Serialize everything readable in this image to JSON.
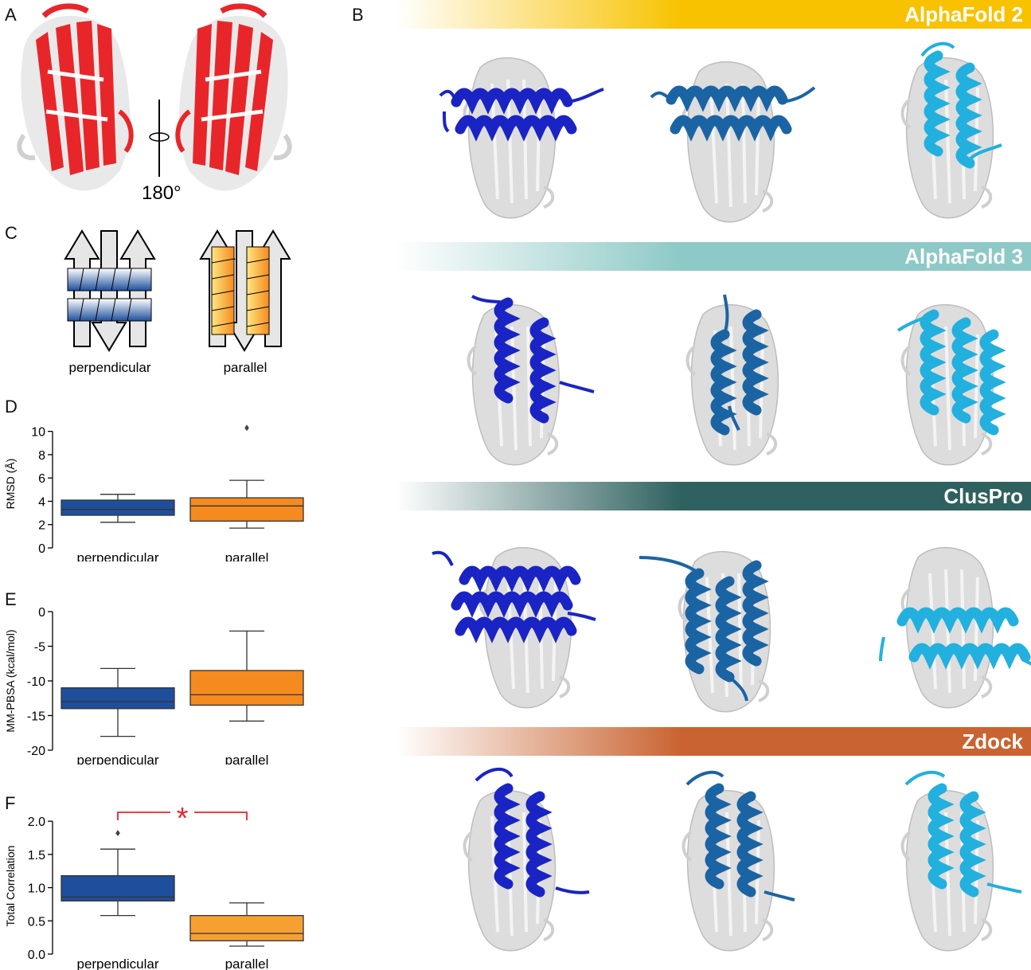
{
  "panels": {
    "a": "A",
    "b": "B",
    "c": "C",
    "d": "D",
    "e": "E",
    "f": "F"
  },
  "panel_a": {
    "rotation_label": "180°"
  },
  "panel_c": {
    "left_label": "perpendicular",
    "right_label": "parallel"
  },
  "methods": [
    {
      "name": "AlphaFold 2",
      "color": "#F8C200"
    },
    {
      "name": "AlphaFold 3",
      "color": "#8DC9C6"
    },
    {
      "name": "ClusPro",
      "color": "#2E615F"
    },
    {
      "name": "Zdock",
      "color": "#C96331"
    }
  ],
  "structure_colors": {
    "red_protein": "#E8262A",
    "helix_1": "#1A24C4",
    "helix_2": "#1B64A4",
    "helix_3": "#22B0DE",
    "protein_gray": "#DADADA"
  },
  "chart_data": [
    {
      "type": "box",
      "panel": "D",
      "ylabel": "RMSD (Å)",
      "yticks": [
        0,
        2,
        4,
        6,
        8,
        10
      ],
      "ylim": [
        0,
        11
      ],
      "categories": [
        "perpendicular",
        "parallel"
      ],
      "colors": [
        "#1E4F9C",
        "#F58A1F"
      ],
      "boxes": [
        {
          "whislo": 2.2,
          "q1": 2.8,
          "med": 3.3,
          "q3": 4.1,
          "whishi": 4.6,
          "fliers": []
        },
        {
          "whislo": 1.7,
          "q1": 2.3,
          "med": 3.6,
          "q3": 4.3,
          "whishi": 5.8,
          "fliers": [
            10.3
          ]
        }
      ]
    },
    {
      "type": "box",
      "panel": "E",
      "ylabel": "MM-PBSA (kcal/mol)",
      "yticks": [
        -20,
        -15,
        -10,
        -5,
        0
      ],
      "ylim": [
        -20,
        0
      ],
      "categories": [
        "perpendicular",
        "parallel"
      ],
      "colors": [
        "#1E4F9C",
        "#F58A1F"
      ],
      "boxes": [
        {
          "whislo": -18.0,
          "q1": -14.0,
          "med": -13.0,
          "q3": -11.0,
          "whishi": -8.2,
          "fliers": []
        },
        {
          "whislo": -15.8,
          "q1": -13.5,
          "med": -12.0,
          "q3": -8.5,
          "whishi": -2.8,
          "fliers": []
        }
      ]
    },
    {
      "type": "box",
      "panel": "F",
      "ylabel": "Total Correlation",
      "yticks": [
        0.0,
        0.5,
        1.0,
        1.5,
        2.0
      ],
      "tick_labels": [
        "0.0",
        "0.5",
        "1.0",
        "1.5",
        "2.0"
      ],
      "ylim": [
        0,
        2.05
      ],
      "categories": [
        "perpendicular",
        "parallel"
      ],
      "colors": [
        "#1E4F9C",
        "#F7A032"
      ],
      "boxes": [
        {
          "whislo": 0.58,
          "q1": 0.8,
          "med": 0.86,
          "q3": 1.18,
          "whishi": 1.58,
          "fliers": [
            1.82
          ]
        },
        {
          "whislo": 0.12,
          "q1": 0.2,
          "med": 0.31,
          "q3": 0.58,
          "whishi": 0.77,
          "fliers": []
        }
      ],
      "significance": "*"
    }
  ]
}
